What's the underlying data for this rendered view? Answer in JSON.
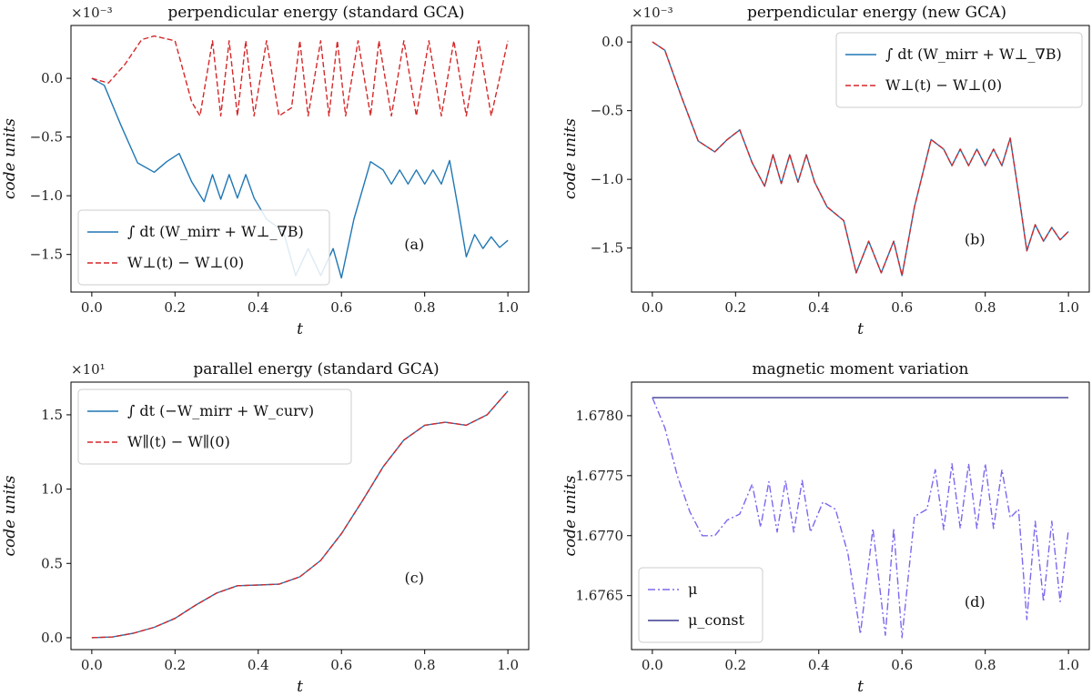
{
  "chart_data": [
    {
      "id": "a",
      "type": "line",
      "title": "perpendicular energy (standard GCA)",
      "xlabel": "t",
      "ylabel": "code units",
      "exponent_label": "×10⁻³",
      "panel_tag": "(a)",
      "legend_position": "lower-left",
      "grid": false,
      "xlim": [
        -0.05,
        1.05
      ],
      "ylim": [
        -1.82,
        0.45
      ],
      "xticks": [
        "0.0",
        "0.2",
        "0.4",
        "0.6",
        "0.8",
        "1.0"
      ],
      "yticks": [
        "0.0",
        "−0.5",
        "−1.0",
        "−1.5"
      ],
      "ytick_values": [
        0.0,
        -0.5,
        -1.0,
        -1.5
      ],
      "series": [
        {
          "name": "∫ dt (W_mirr + W⊥_∇B)",
          "color": "#1f77b4",
          "dash": "solid",
          "x": [
            0,
            0.03,
            0.07,
            0.11,
            0.15,
            0.18,
            0.21,
            0.24,
            0.27,
            0.29,
            0.31,
            0.33,
            0.35,
            0.37,
            0.39,
            0.42,
            0.46,
            0.49,
            0.52,
            0.55,
            0.58,
            0.6,
            0.63,
            0.67,
            0.7,
            0.72,
            0.74,
            0.76,
            0.78,
            0.8,
            0.82,
            0.84,
            0.86,
            0.88,
            0.9,
            0.92,
            0.94,
            0.96,
            0.98,
            1.0
          ],
          "y": [
            0,
            -0.06,
            -0.4,
            -0.72,
            -0.8,
            -0.71,
            -0.64,
            -0.88,
            -1.05,
            -0.82,
            -1.03,
            -0.82,
            -1.02,
            -0.82,
            -1.02,
            -1.2,
            -1.3,
            -1.68,
            -1.45,
            -1.68,
            -1.45,
            -1.7,
            -1.2,
            -0.71,
            -0.78,
            -0.9,
            -0.78,
            -0.9,
            -0.78,
            -0.9,
            -0.78,
            -0.9,
            -0.7,
            -1.1,
            -1.52,
            -1.33,
            -1.45,
            -1.35,
            -1.44,
            -1.38
          ]
        },
        {
          "name": "W⊥(t) − W⊥(0)",
          "color": "#d62728",
          "dash": "dashed",
          "x": [
            0,
            0.04,
            0.08,
            0.12,
            0.15,
            0.2,
            0.24,
            0.26,
            0.29,
            0.31,
            0.33,
            0.35,
            0.37,
            0.39,
            0.42,
            0.45,
            0.48,
            0.5,
            0.52,
            0.55,
            0.57,
            0.59,
            0.61,
            0.64,
            0.67,
            0.69,
            0.72,
            0.75,
            0.78,
            0.81,
            0.84,
            0.87,
            0.9,
            0.93,
            0.96,
            1.0
          ],
          "y": [
            0,
            -0.04,
            0.12,
            0.33,
            0.36,
            0.32,
            -0.2,
            -0.32,
            0.32,
            -0.32,
            0.32,
            -0.32,
            0.32,
            -0.32,
            0.32,
            -0.32,
            -0.25,
            0.32,
            -0.32,
            0.32,
            -0.32,
            0.32,
            -0.32,
            0.32,
            -0.32,
            0.32,
            -0.32,
            0.32,
            -0.32,
            0.32,
            -0.32,
            0.32,
            -0.32,
            0.32,
            -0.32,
            0.32
          ]
        }
      ]
    },
    {
      "id": "b",
      "type": "line",
      "title": "perpendicular energy (new GCA)",
      "xlabel": "t",
      "ylabel": "code units",
      "exponent_label": "×10⁻³",
      "panel_tag": "(b)",
      "legend_position": "upper-right",
      "grid": false,
      "xlim": [
        -0.05,
        1.05
      ],
      "ylim": [
        -1.82,
        0.12
      ],
      "xticks": [
        "0.0",
        "0.2",
        "0.4",
        "0.6",
        "0.8",
        "1.0"
      ],
      "yticks": [
        "0.0",
        "−0.5",
        "−1.0",
        "−1.5"
      ],
      "ytick_values": [
        0.0,
        -0.5,
        -1.0,
        -1.5
      ],
      "series": [
        {
          "name": "∫ dt (W_mirr + W⊥_∇B)",
          "color": "#1f77b4",
          "dash": "solid",
          "x": [
            0,
            0.03,
            0.07,
            0.11,
            0.15,
            0.18,
            0.21,
            0.24,
            0.27,
            0.29,
            0.31,
            0.33,
            0.35,
            0.37,
            0.39,
            0.42,
            0.46,
            0.49,
            0.52,
            0.55,
            0.58,
            0.6,
            0.63,
            0.67,
            0.7,
            0.72,
            0.74,
            0.76,
            0.78,
            0.8,
            0.82,
            0.84,
            0.86,
            0.88,
            0.9,
            0.92,
            0.94,
            0.96,
            0.98,
            1.0
          ],
          "y": [
            0,
            -0.06,
            -0.4,
            -0.72,
            -0.8,
            -0.71,
            -0.64,
            -0.88,
            -1.05,
            -0.82,
            -1.03,
            -0.82,
            -1.02,
            -0.82,
            -1.02,
            -1.2,
            -1.3,
            -1.68,
            -1.45,
            -1.68,
            -1.45,
            -1.7,
            -1.2,
            -0.71,
            -0.78,
            -0.9,
            -0.78,
            -0.9,
            -0.78,
            -0.9,
            -0.78,
            -0.9,
            -0.7,
            -1.1,
            -1.52,
            -1.33,
            -1.45,
            -1.35,
            -1.44,
            -1.38
          ]
        },
        {
          "name": "W⊥(t) − W⊥(0)",
          "color": "#d62728",
          "dash": "dashed",
          "x": [
            0,
            0.03,
            0.07,
            0.11,
            0.15,
            0.18,
            0.21,
            0.24,
            0.27,
            0.29,
            0.31,
            0.33,
            0.35,
            0.37,
            0.39,
            0.42,
            0.46,
            0.49,
            0.52,
            0.55,
            0.58,
            0.6,
            0.63,
            0.67,
            0.7,
            0.72,
            0.74,
            0.76,
            0.78,
            0.8,
            0.82,
            0.84,
            0.86,
            0.88,
            0.9,
            0.92,
            0.94,
            0.96,
            0.98,
            1.0
          ],
          "y": [
            0,
            -0.06,
            -0.4,
            -0.72,
            -0.8,
            -0.71,
            -0.64,
            -0.88,
            -1.05,
            -0.82,
            -1.03,
            -0.82,
            -1.02,
            -0.82,
            -1.02,
            -1.2,
            -1.3,
            -1.68,
            -1.45,
            -1.68,
            -1.45,
            -1.7,
            -1.2,
            -0.71,
            -0.78,
            -0.9,
            -0.78,
            -0.9,
            -0.78,
            -0.9,
            -0.78,
            -0.9,
            -0.7,
            -1.1,
            -1.52,
            -1.33,
            -1.45,
            -1.35,
            -1.44,
            -1.38
          ]
        }
      ]
    },
    {
      "id": "c",
      "type": "line",
      "title": "parallel energy (standard GCA)",
      "xlabel": "t",
      "ylabel": "code units",
      "exponent_label": "×10¹",
      "panel_tag": "(c)",
      "legend_position": "upper-left",
      "grid": false,
      "xlim": [
        -0.05,
        1.05
      ],
      "ylim": [
        -0.08,
        1.72
      ],
      "xticks": [
        "0.0",
        "0.2",
        "0.4",
        "0.6",
        "0.8",
        "1.0"
      ],
      "yticks": [
        "0.0",
        "0.5",
        "1.0",
        "1.5"
      ],
      "ytick_values": [
        0.0,
        0.5,
        1.0,
        1.5
      ],
      "series": [
        {
          "name": "∫ dt (−W_mirr + W_curv)",
          "color": "#1f77b4",
          "dash": "solid",
          "x": [
            0,
            0.05,
            0.1,
            0.15,
            0.2,
            0.25,
            0.3,
            0.35,
            0.4,
            0.45,
            0.5,
            0.55,
            0.6,
            0.65,
            0.7,
            0.75,
            0.8,
            0.85,
            0.9,
            0.95,
            1.0
          ],
          "y": [
            0,
            0.005,
            0.03,
            0.07,
            0.13,
            0.22,
            0.3,
            0.35,
            0.355,
            0.36,
            0.41,
            0.52,
            0.7,
            0.92,
            1.15,
            1.33,
            1.43,
            1.45,
            1.43,
            1.5,
            1.66
          ]
        },
        {
          "name": "W∥(t) − W∥(0)",
          "color": "#d62728",
          "dash": "dashed",
          "x": [
            0,
            0.05,
            0.1,
            0.15,
            0.2,
            0.25,
            0.3,
            0.35,
            0.4,
            0.45,
            0.5,
            0.55,
            0.6,
            0.65,
            0.7,
            0.75,
            0.8,
            0.85,
            0.9,
            0.95,
            1.0
          ],
          "y": [
            0,
            0.005,
            0.03,
            0.07,
            0.13,
            0.22,
            0.3,
            0.35,
            0.355,
            0.36,
            0.41,
            0.52,
            0.7,
            0.92,
            1.15,
            1.33,
            1.43,
            1.45,
            1.43,
            1.5,
            1.66
          ]
        }
      ]
    },
    {
      "id": "d",
      "type": "line",
      "title": "magnetic moment variation",
      "xlabel": "t",
      "ylabel": "code units",
      "exponent_label": "",
      "panel_tag": "(d)",
      "legend_position": "lower-left",
      "grid": false,
      "xlim": [
        -0.05,
        1.05
      ],
      "ylim": [
        1.67605,
        1.67828
      ],
      "xticks": [
        "0.0",
        "0.2",
        "0.4",
        "0.6",
        "0.8",
        "1.0"
      ],
      "yticks": [
        "1.6780",
        "1.6775",
        "1.6770",
        "1.6765"
      ],
      "ytick_values": [
        1.678,
        1.6775,
        1.677,
        1.6765
      ],
      "series": [
        {
          "name": "μ",
          "color": "#7b68ee",
          "dash": "dashdot",
          "x": [
            0,
            0.03,
            0.06,
            0.09,
            0.12,
            0.15,
            0.18,
            0.21,
            0.24,
            0.26,
            0.28,
            0.3,
            0.32,
            0.34,
            0.36,
            0.38,
            0.41,
            0.44,
            0.47,
            0.5,
            0.53,
            0.56,
            0.58,
            0.6,
            0.63,
            0.66,
            0.68,
            0.7,
            0.72,
            0.74,
            0.76,
            0.78,
            0.8,
            0.82,
            0.84,
            0.86,
            0.88,
            0.9,
            0.92,
            0.94,
            0.96,
            0.98,
            1.0
          ],
          "y": [
            1.67815,
            1.6779,
            1.6775,
            1.6772,
            1.677,
            1.677,
            1.67713,
            1.67718,
            1.67743,
            1.67707,
            1.67745,
            1.67703,
            1.67746,
            1.67703,
            1.67746,
            1.67703,
            1.67728,
            1.67722,
            1.67685,
            1.67618,
            1.67706,
            1.67617,
            1.67706,
            1.67615,
            1.67716,
            1.67722,
            1.67755,
            1.67705,
            1.6776,
            1.67706,
            1.6776,
            1.67706,
            1.6776,
            1.67706,
            1.67755,
            1.67715,
            1.67722,
            1.6763,
            1.67712,
            1.67645,
            1.67712,
            1.67645,
            1.67705
          ]
        },
        {
          "name": "μ_const",
          "color": "#3b3b8f",
          "dash": "solid",
          "x": [
            0,
            1.0
          ],
          "y": [
            1.67815,
            1.67815
          ]
        }
      ]
    }
  ]
}
